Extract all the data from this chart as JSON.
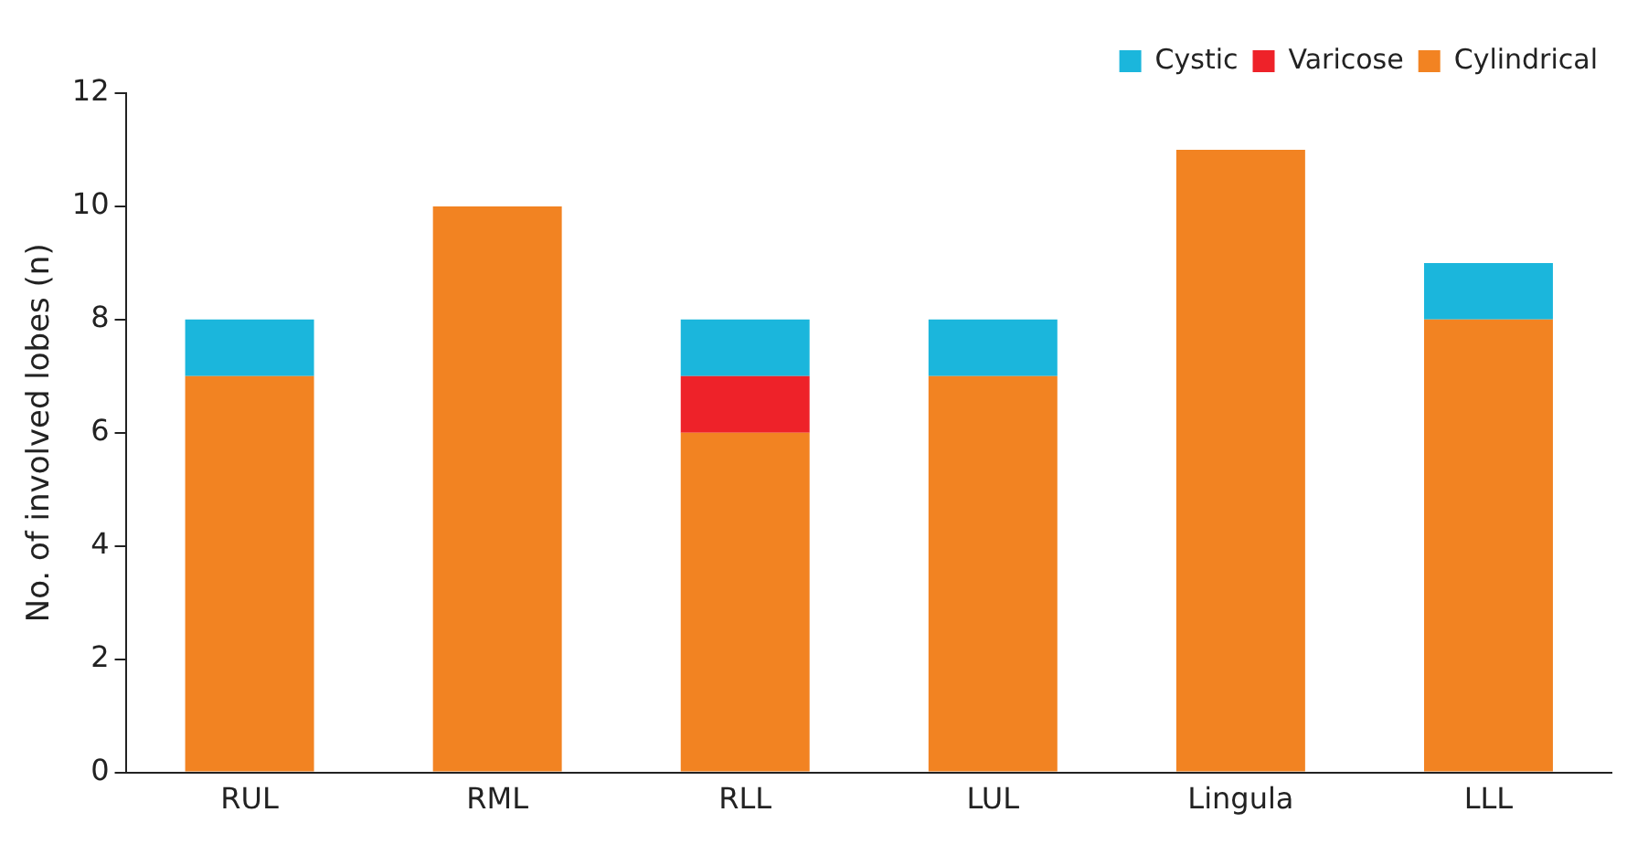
{
  "chart_data": {
    "type": "bar",
    "stacked": true,
    "ylabel": "No. of involved lobes (n)",
    "categories": [
      "RUL",
      "RML",
      "RLL",
      "LUL",
      "Lingula",
      "LLL"
    ],
    "series": [
      {
        "name": "Cylindrical",
        "color": "#f28322",
        "values": [
          7,
          10,
          6,
          7,
          11,
          8
        ]
      },
      {
        "name": "Varicose",
        "color": "#ee2229",
        "values": [
          0,
          0,
          1,
          0,
          0,
          0
        ]
      },
      {
        "name": "Cystic",
        "color": "#1bb6dc",
        "values": [
          1,
          0,
          1,
          1,
          0,
          1
        ]
      }
    ],
    "ylim": [
      0,
      12
    ],
    "yticks": [
      0,
      2,
      4,
      6,
      8,
      10,
      12
    ],
    "grid": false,
    "legend": "top right"
  }
}
